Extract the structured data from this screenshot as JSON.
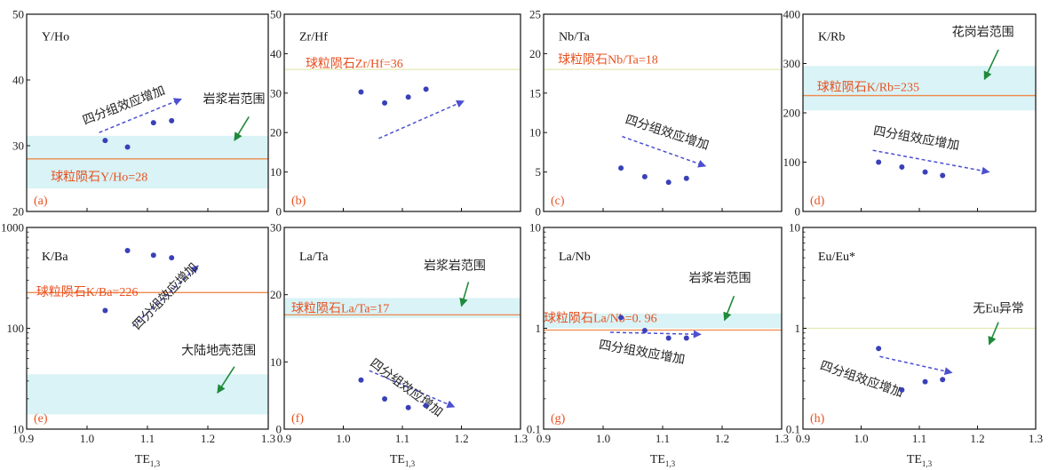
{
  "figure": {
    "colors": {
      "frame": "#111111",
      "band": "#d9f3f6",
      "ref_line": "#f08a4b",
      "ref_label": "#e8501f",
      "points": "#3a40b8",
      "trend_arrow": "#4b4fd0",
      "green_arrow": "#1f8a3a",
      "faint_line": "#e4e8b0"
    },
    "shared_xlabel": "TE",
    "shared_xlabel_sub": "1,3",
    "shared_xticks": [
      "0.9",
      "1.0",
      "1.1",
      "1.2",
      "1.3"
    ]
  },
  "chart_data": [
    {
      "id": "a",
      "type": "scatter",
      "panel_label": "(a)",
      "title": "Y/Ho",
      "xlim": [
        0.9,
        1.3
      ],
      "ylim": [
        20,
        50
      ],
      "yscale": "linear",
      "yticks": [
        20,
        30,
        40,
        50
      ],
      "points": [
        [
          1.03,
          30.8
        ],
        [
          1.067,
          29.8
        ],
        [
          1.11,
          33.5
        ],
        [
          1.14,
          33.8
        ]
      ],
      "reference": {
        "value": 28,
        "label": "球粒陨石Y/Ho=28"
      },
      "band": [
        23.5,
        31.5
      ],
      "band_label": "岩浆岩范围",
      "trend_label": "四分组效应增加"
    },
    {
      "id": "b",
      "type": "scatter",
      "panel_label": "(b)",
      "title": "Zr/Hf",
      "xlim": [
        0.9,
        1.3
      ],
      "ylim": [
        0,
        50
      ],
      "yscale": "linear",
      "yticks": [
        0,
        10,
        20,
        30,
        40,
        50
      ],
      "points": [
        [
          1.03,
          30.3
        ],
        [
          1.07,
          27.5
        ],
        [
          1.11,
          29.0
        ],
        [
          1.14,
          31.0
        ]
      ],
      "reference": {
        "value": 36,
        "label": "球粒陨石Zr/Hf=36"
      },
      "trend_label": ""
    },
    {
      "id": "c",
      "type": "scatter",
      "panel_label": "(c)",
      "title": "Nb/Ta",
      "xlim": [
        0.9,
        1.3
      ],
      "ylim": [
        0,
        25
      ],
      "yscale": "linear",
      "yticks": [
        0,
        5,
        10,
        15,
        20,
        25
      ],
      "points": [
        [
          1.03,
          5.5
        ],
        [
          1.07,
          4.4
        ],
        [
          1.11,
          3.7
        ],
        [
          1.14,
          4.2
        ]
      ],
      "reference": {
        "value": 18,
        "label": "球粒陨石Nb/Ta=18"
      },
      "trend_label": "四分组效应增加"
    },
    {
      "id": "d",
      "type": "scatter",
      "panel_label": "(d)",
      "title": "K/Rb",
      "xlim": [
        0.9,
        1.3
      ],
      "ylim": [
        0,
        400
      ],
      "yscale": "linear",
      "yticks": [
        0,
        100,
        200,
        300,
        400
      ],
      "points": [
        [
          1.03,
          100
        ],
        [
          1.07,
          90
        ],
        [
          1.11,
          80
        ],
        [
          1.14,
          73
        ]
      ],
      "reference": {
        "value": 235,
        "label": "球粒陨石K/Rb=235"
      },
      "band": [
        205,
        295
      ],
      "band_label": "花岗岩范围",
      "trend_label": "四分组效应增加"
    },
    {
      "id": "e",
      "type": "scatter",
      "panel_label": "(e)",
      "title": "K/Ba",
      "xlim": [
        0.9,
        1.3
      ],
      "ylim": [
        10,
        1000
      ],
      "yscale": "log",
      "yticks": [
        10,
        100,
        1000
      ],
      "points": [
        [
          1.03,
          150
        ],
        [
          1.067,
          590
        ],
        [
          1.11,
          530
        ],
        [
          1.14,
          500
        ]
      ],
      "reference": {
        "value": 226,
        "label": "球粒陨石K/Ba=226"
      },
      "band": [
        14,
        35
      ],
      "band_label": "大陆地壳范围",
      "trend_label": "四分组效应增加"
    },
    {
      "id": "f",
      "type": "scatter",
      "panel_label": "(f)",
      "title": "La/Ta",
      "xlim": [
        0.9,
        1.3
      ],
      "ylim": [
        0,
        30
      ],
      "yscale": "linear",
      "yticks": [
        0,
        10,
        20,
        30
      ],
      "points": [
        [
          1.03,
          7.3
        ],
        [
          1.07,
          4.5
        ],
        [
          1.11,
          3.2
        ],
        [
          1.14,
          3.5
        ]
      ],
      "reference": {
        "value": 17,
        "label": "球粒陨石La/Ta=17"
      },
      "band": [
        16.5,
        19.5
      ],
      "band_label": "岩浆岩范围",
      "trend_label": "四分组效应增加"
    },
    {
      "id": "g",
      "type": "scatter",
      "panel_label": "(g)",
      "title": "La/Nb",
      "xlim": [
        0.9,
        1.3
      ],
      "ylim": [
        0.1,
        10
      ],
      "yscale": "log",
      "yticks": [
        0.1,
        1,
        10
      ],
      "points": [
        [
          1.03,
          1.28
        ],
        [
          1.07,
          0.95
        ],
        [
          1.11,
          0.8
        ],
        [
          1.14,
          0.8
        ]
      ],
      "reference": {
        "value": 0.96,
        "label": "球粒陨石La/Nb=0. 96"
      },
      "band": [
        1.0,
        1.4
      ],
      "band_label": "岩浆岩范围",
      "trend_label": "四分组效应增加"
    },
    {
      "id": "h",
      "type": "scatter",
      "panel_label": "(h)",
      "title": "Eu/Eu*",
      "xlim": [
        0.9,
        1.3
      ],
      "ylim": [
        0.1,
        10
      ],
      "yscale": "log",
      "yticks": [
        0.1,
        1,
        10
      ],
      "points": [
        [
          1.03,
          0.63
        ],
        [
          1.07,
          0.245
        ],
        [
          1.11,
          0.295
        ],
        [
          1.14,
          0.31
        ]
      ],
      "reference": {
        "value": 1,
        "label": ""
      },
      "band_label": "无Eu异常",
      "trend_label": "四分组效应增加"
    }
  ]
}
